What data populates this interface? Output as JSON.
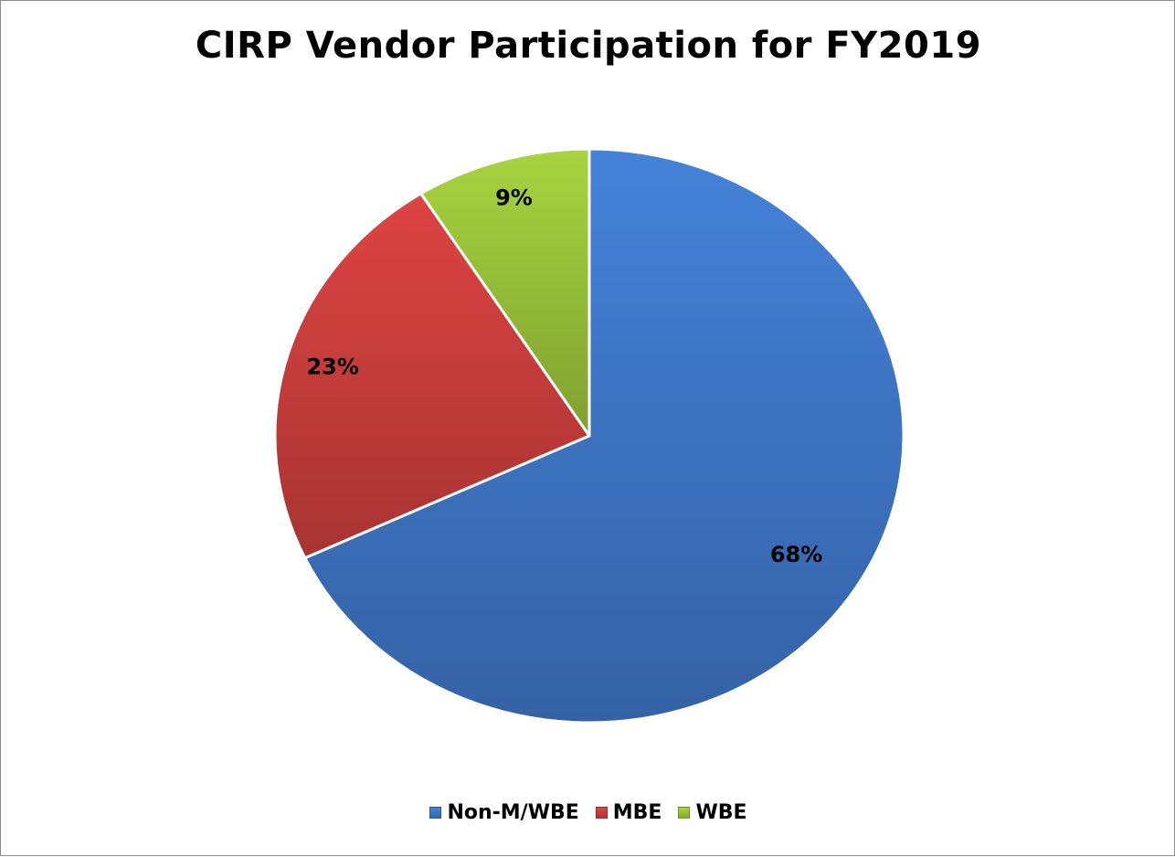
{
  "chart_data": {
    "type": "pie",
    "title": "CIRP Vendor Participation for FY2019",
    "categories": [
      "Non-M/WBE",
      "MBE",
      "WBE"
    ],
    "values": [
      68,
      23,
      9
    ],
    "labels": [
      "68%",
      "23%",
      "9%"
    ],
    "colors": [
      "#3f78c9",
      "#cd3f3d",
      "#9bc43a"
    ],
    "legend": "bottom"
  }
}
